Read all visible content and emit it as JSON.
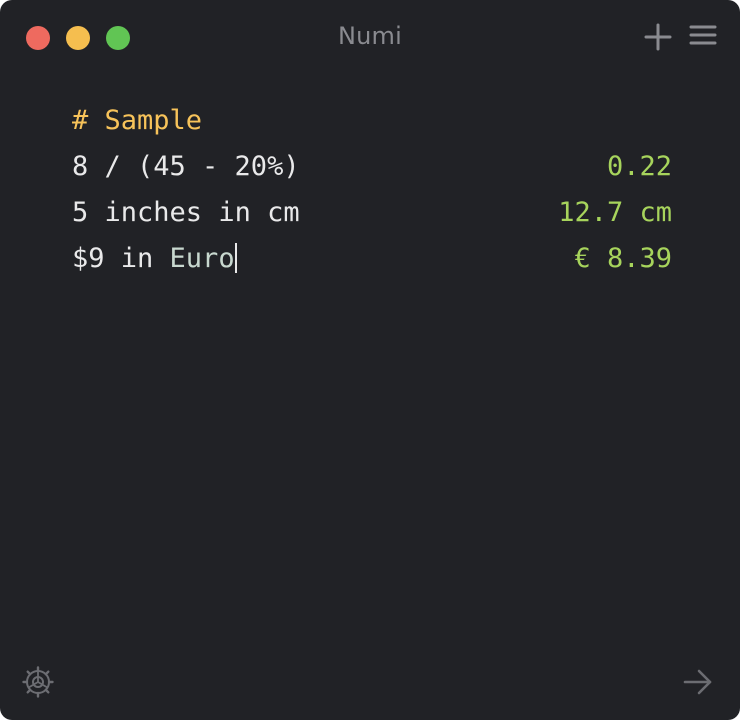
{
  "window": {
    "title": "Numi"
  },
  "toolbar": {
    "new_icon": "plus-icon",
    "menu_icon": "hamburger-menu-icon"
  },
  "lines": [
    {
      "expression": "# Sample",
      "result": ""
    },
    {
      "expression": "8 / (45 - 20%)",
      "result": "0.22"
    },
    {
      "expression_prefix": "5 inches ",
      "expression_unit": "in cm",
      "result": "12.7 cm"
    },
    {
      "expression_prefix": "$9 in ",
      "expression_unit": "Euro",
      "result": "€ 8.39"
    }
  ],
  "footer": {
    "settings_icon": "gear-icon",
    "share_icon": "arrow-right-icon"
  },
  "colors": {
    "background": "#212226",
    "heading": "#f7c35a",
    "result": "#a7d45c",
    "text": "#e9e9ea",
    "close": "#ee6a5f",
    "minimize": "#f5be4f",
    "maximize": "#61c554"
  }
}
